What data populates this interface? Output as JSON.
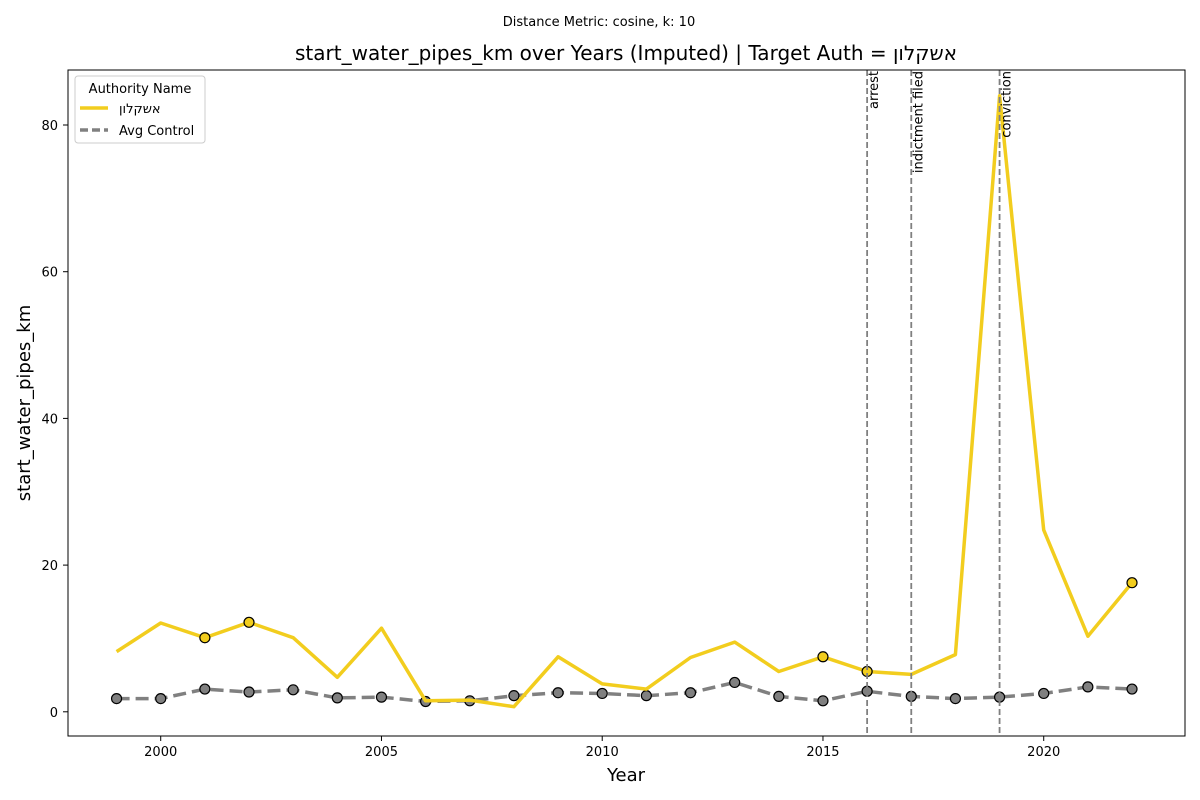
{
  "chart_data": {
    "type": "line",
    "suptitle": "Distance Metric: cosine, k: 10",
    "title": "start_water_pipes_km over Years (Imputed) | Target Auth = אשקלון",
    "xlabel": "Year",
    "ylabel": "start_water_pipes_km",
    "xlim": [
      1997.9,
      2023.2
    ],
    "ylim": [
      -3.3,
      87.5
    ],
    "xticks": [
      2000,
      2005,
      2010,
      2015,
      2020
    ],
    "yticks": [
      0,
      20,
      40,
      60,
      80
    ],
    "grid": false,
    "legend": {
      "title": "Authority Name",
      "placement": "top-left"
    },
    "series": [
      {
        "name": "אשקלון",
        "color": "#f2cd1e",
        "style": "solid",
        "x": [
          1999,
          2000,
          2001,
          2002,
          2003,
          2004,
          2005,
          2006,
          2007,
          2008,
          2009,
          2010,
          2011,
          2012,
          2013,
          2014,
          2015,
          2016,
          2017,
          2018,
          2019,
          2020,
          2021,
          2022
        ],
        "values": [
          8.2,
          12.1,
          10.1,
          12.2,
          10.1,
          4.7,
          11.4,
          1.5,
          1.6,
          0.7,
          7.5,
          3.8,
          3.1,
          7.4,
          9.5,
          5.5,
          7.5,
          5.5,
          5.1,
          7.8,
          84.0,
          24.8,
          10.3,
          17.6
        ],
        "markers_at": [
          2001,
          2002,
          2015,
          2016,
          2022
        ]
      },
      {
        "name": "Avg Control",
        "color": "#808080",
        "style": "dashed",
        "x": [
          1999,
          2000,
          2001,
          2002,
          2003,
          2004,
          2005,
          2006,
          2007,
          2008,
          2009,
          2010,
          2011,
          2012,
          2013,
          2014,
          2015,
          2016,
          2017,
          2018,
          2019,
          2020,
          2021,
          2022
        ],
        "values": [
          1.8,
          1.8,
          3.1,
          2.7,
          3.0,
          1.9,
          2.0,
          1.4,
          1.5,
          2.2,
          2.6,
          2.5,
          2.2,
          2.6,
          4.0,
          2.1,
          1.5,
          2.8,
          2.1,
          1.8,
          2.0,
          2.5,
          3.4,
          3.1
        ],
        "markers_at": [
          1999,
          2000,
          2001,
          2002,
          2003,
          2004,
          2005,
          2006,
          2007,
          2008,
          2009,
          2010,
          2011,
          2012,
          2013,
          2014,
          2015,
          2016,
          2017,
          2018,
          2019,
          2020,
          2021,
          2022
        ]
      }
    ],
    "events": [
      {
        "x": 2016,
        "label": "arrest"
      },
      {
        "x": 2017,
        "label": "indictment filed"
      },
      {
        "x": 2019,
        "label": "conviction"
      }
    ]
  }
}
